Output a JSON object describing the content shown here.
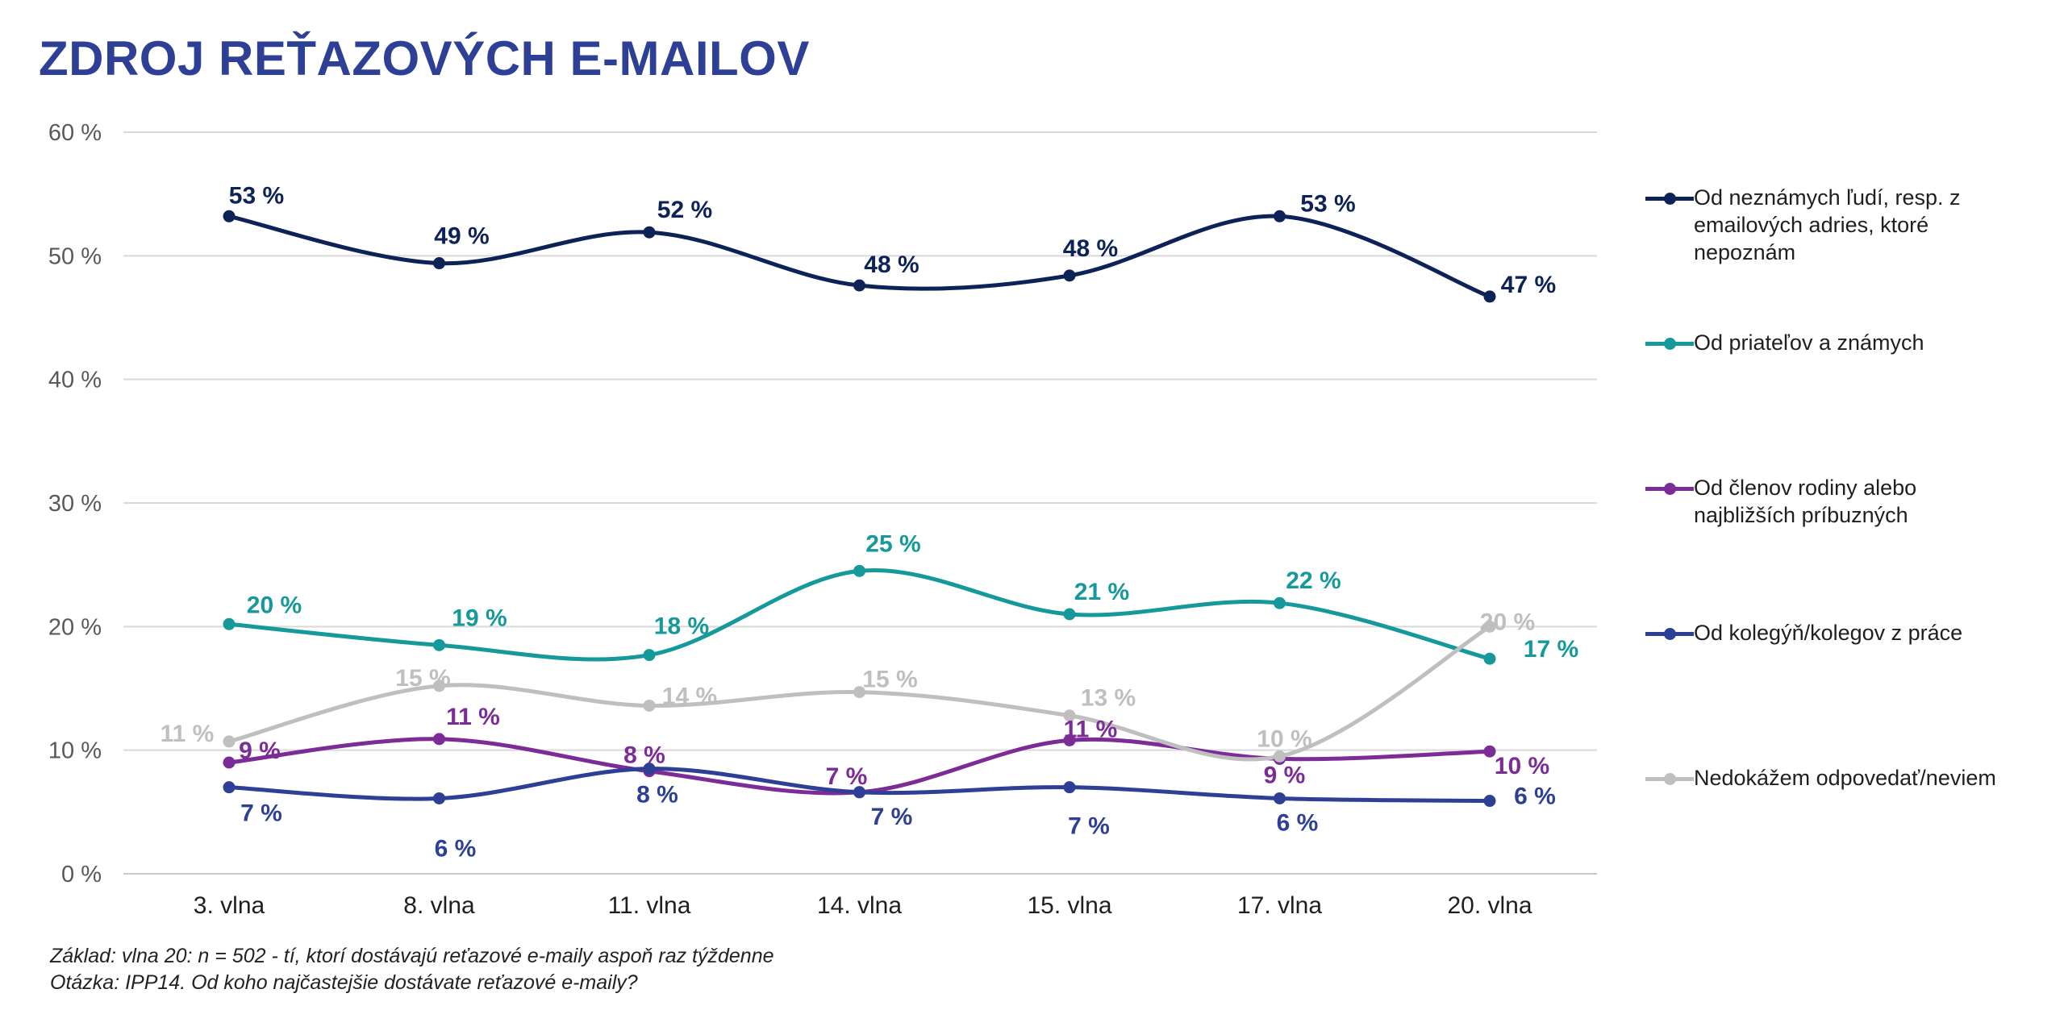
{
  "title": "ZDROJ REŤAZOVÝCH E-MAILOV",
  "footnotes": {
    "base": "Základ: vlna 20: n = 502 - tí, ktorí dostávajú reťazové e-maily aspoň raz týždenne",
    "question": "Otázka: IPP14. Od koho najčastejšie dostávate reťazové e-maily?"
  },
  "chart_data": {
    "type": "line",
    "title": "ZDROJ REŤAZOVÝCH E-MAILOV",
    "xlabel": "",
    "ylabel": "",
    "categories": [
      "3. vlna",
      "8. vlna",
      "11. vlna",
      "14. vlna",
      "15. vlna",
      "17. vlna",
      "20. vlna"
    ],
    "ylim": [
      0,
      60
    ],
    "yticks": [
      0,
      10,
      20,
      30,
      40,
      50,
      60
    ],
    "ytick_labels": [
      "0 %",
      "10 %",
      "20 %",
      "30 %",
      "40 %",
      "50 %",
      "60 %"
    ],
    "grid": true,
    "legend_position": "right",
    "smooth": true,
    "series": [
      {
        "name": "Od neznámych ľudí, resp. z emailových adries, ktoré nepoznám",
        "color": "#0d2257",
        "values": [
          53.2,
          49.4,
          51.9,
          47.6,
          48.4,
          53.2,
          46.7
        ],
        "labels": [
          "53 %",
          "49 %",
          "52 %",
          "48 %",
          "48 %",
          "53 %",
          "47 %"
        ]
      },
      {
        "name": "Od priateľov a známych",
        "color": "#16999b",
        "values": [
          20.2,
          18.5,
          17.7,
          24.5,
          21.0,
          21.9,
          17.4
        ],
        "labels": [
          "20 %",
          "19 %",
          "18 %",
          "25 %",
          "21 %",
          "22 %",
          "17 %"
        ]
      },
      {
        "name": "Od členov rodiny alebo najbližších príbuzných",
        "color": "#7b2c96",
        "values": [
          9.0,
          10.9,
          8.3,
          6.6,
          10.8,
          9.3,
          9.9
        ],
        "labels": [
          "9 %",
          "11 %",
          "8 %",
          "7 %",
          "11 %",
          "9 %",
          "10 %"
        ]
      },
      {
        "name": "Od kolegýň/kolegov z práce",
        "color": "#2e3f96",
        "values": [
          7.0,
          6.1,
          8.5,
          6.6,
          7.0,
          6.1,
          5.9
        ],
        "labels": [
          "7 %",
          "6 %",
          "8 %",
          "7 %",
          "7 %",
          "6 %",
          "6 %"
        ]
      },
      {
        "name": "Nedokážem odpovedať/neviem",
        "color": "#bfbfbf",
        "values": [
          10.7,
          15.2,
          13.6,
          14.7,
          12.8,
          9.5,
          20.0
        ],
        "labels": [
          "11 %",
          "15 %",
          "14 %",
          "15 %",
          "13 %",
          "10 %",
          "20 %"
        ]
      }
    ]
  }
}
